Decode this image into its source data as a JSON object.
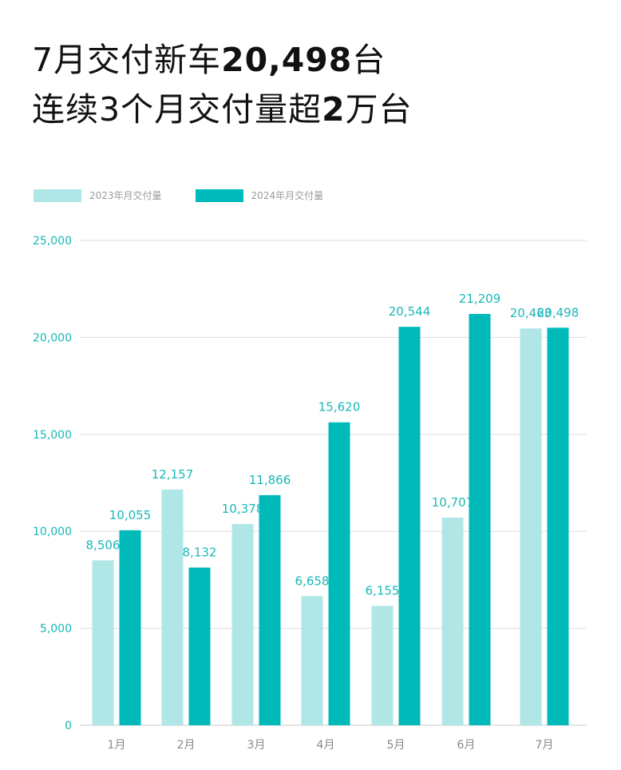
{
  "headline": {
    "line1_prefix": "7月交付新车",
    "line1_bold": "20,498",
    "line1_suffix": "台",
    "line2_prefix": "连续3个月交付量超",
    "line2_bold": "2",
    "line2_suffix": "万台"
  },
  "colors": {
    "series_2023": "#b1e6e6",
    "series_2024": "#00b9b9",
    "label": "#19b8b8",
    "grid": "#dddddd"
  },
  "chart_data": {
    "type": "bar",
    "categories": [
      "1月",
      "2月",
      "3月",
      "4月",
      "5月",
      "6月",
      "7月"
    ],
    "series": [
      {
        "name": "2023年月交付量",
        "values": [
          8506,
          12157,
          10378,
          6658,
          6155,
          10707,
          20463
        ]
      },
      {
        "name": "2024年月交付量",
        "values": [
          10055,
          8132,
          11866,
          15620,
          20544,
          21209,
          20498
        ]
      }
    ],
    "value_labels": [
      [
        "8,506",
        "12,157",
        "10,378",
        "6,658",
        "6,155",
        "10,707",
        "20,463"
      ],
      [
        "10,055",
        "8,132",
        "11,866",
        "15,620",
        "20,544",
        "21,209",
        "20,498"
      ]
    ],
    "yticks": [
      0,
      5000,
      10000,
      15000,
      20000,
      25000
    ],
    "ytick_labels": [
      "0",
      "5,000",
      "10,000",
      "15,000",
      "20,000",
      "25,000"
    ],
    "ylim": [
      0,
      25000
    ],
    "grid": true,
    "legend_position": "top-left"
  }
}
